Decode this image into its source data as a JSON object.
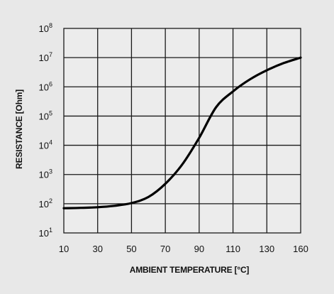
{
  "chart_data": {
    "type": "line",
    "xlabel": "AMBIENT TEMPERATURE [°C]",
    "ylabel": "RESISTANCE [Ohm]",
    "x_ticks": [
      "10",
      "30",
      "50",
      "70",
      "90",
      "110",
      "130",
      "160"
    ],
    "y_ticks": [
      {
        "base": "10",
        "exp": "1"
      },
      {
        "base": "10",
        "exp": "2"
      },
      {
        "base": "10",
        "exp": "3"
      },
      {
        "base": "10",
        "exp": "4"
      },
      {
        "base": "10",
        "exp": "5"
      },
      {
        "base": "10",
        "exp": "6"
      },
      {
        "base": "10",
        "exp": "7"
      },
      {
        "base": "10",
        "exp": "8"
      }
    ],
    "y_scale": "log",
    "ylim": [
      10,
      100000000
    ],
    "grid": true,
    "series": [
      {
        "x": [
          10,
          20,
          30,
          40,
          50,
          60,
          70,
          80,
          90,
          100,
          110,
          120,
          130,
          145,
          160
        ],
        "y": [
          70,
          72,
          76,
          85,
          105,
          170,
          480,
          2200,
          18000,
          200000,
          700000,
          1800000,
          3700000,
          6500000,
          10000000
        ]
      }
    ]
  }
}
